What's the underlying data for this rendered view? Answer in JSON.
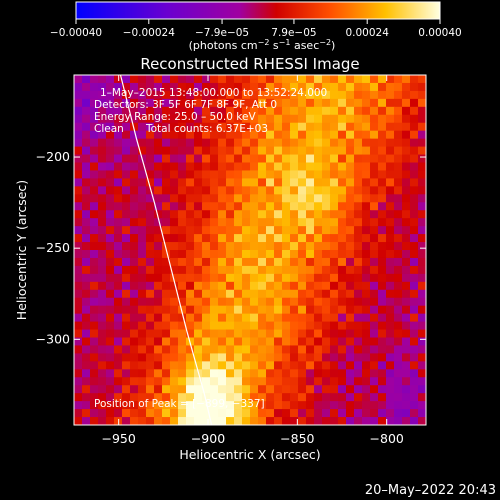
{
  "chart_data": {
    "type": "heatmap",
    "title": "Reconstructed RHESSI Image",
    "xlabel": "Heliocentric X (arcsec)",
    "ylabel": "Heliocentric Y (arcsec)",
    "xlim": [
      -975,
      -778
    ],
    "ylim": [
      -347,
      -155
    ],
    "x_ticks": [
      -950,
      -900,
      -850,
      -800
    ],
    "x_tick_labels": [
      "−950",
      "−900",
      "−850",
      "−800"
    ],
    "y_ticks": [
      -200,
      -250,
      -300
    ],
    "y_tick_labels": [
      "−200",
      "−250",
      "−300"
    ],
    "colorbar": {
      "range": [
        -0.0004,
        0.0004
      ],
      "ticks": [
        -0.0004,
        -0.00024,
        -7.9e-05,
        7.9e-05,
        0.00024,
        0.0004
      ],
      "tick_labels": [
        "−0.00040",
        "−0.00024",
        "−7.9e−05",
        "7.9e−05",
        "0.00024",
        "0.00040"
      ],
      "units_text": "(photons cm",
      "units_exp1": "−2",
      "units_mid": " s",
      "units_exp2": "−1",
      "units_tail": " asec",
      "units_exp3": "−2",
      "units_close": ")"
    },
    "annotations": {
      "time_range": "1–May–2015 13:48:00.000 to 13:52:24.000",
      "detectors": "Detectors: 3F 5F 6F 7F 8F 9F, Att 0",
      "energy": "Energy Range: 25.0 – 50.0 keV",
      "method": "Clean",
      "total_counts": "Total counts: 6.37E+03",
      "peak": "Position of Peak = [−899, −337]"
    },
    "peak": {
      "x": -899,
      "y": -337
    },
    "limb_curve": [
      [
        -949,
        -155
      ],
      [
        -940,
        -190
      ],
      [
        -930,
        -225
      ],
      [
        -921,
        -260
      ],
      [
        -912,
        -295
      ],
      [
        -902,
        -330
      ],
      [
        -898,
        -347
      ]
    ],
    "grid": false
  },
  "footer": {
    "date": "20–May–2022 20:43"
  }
}
